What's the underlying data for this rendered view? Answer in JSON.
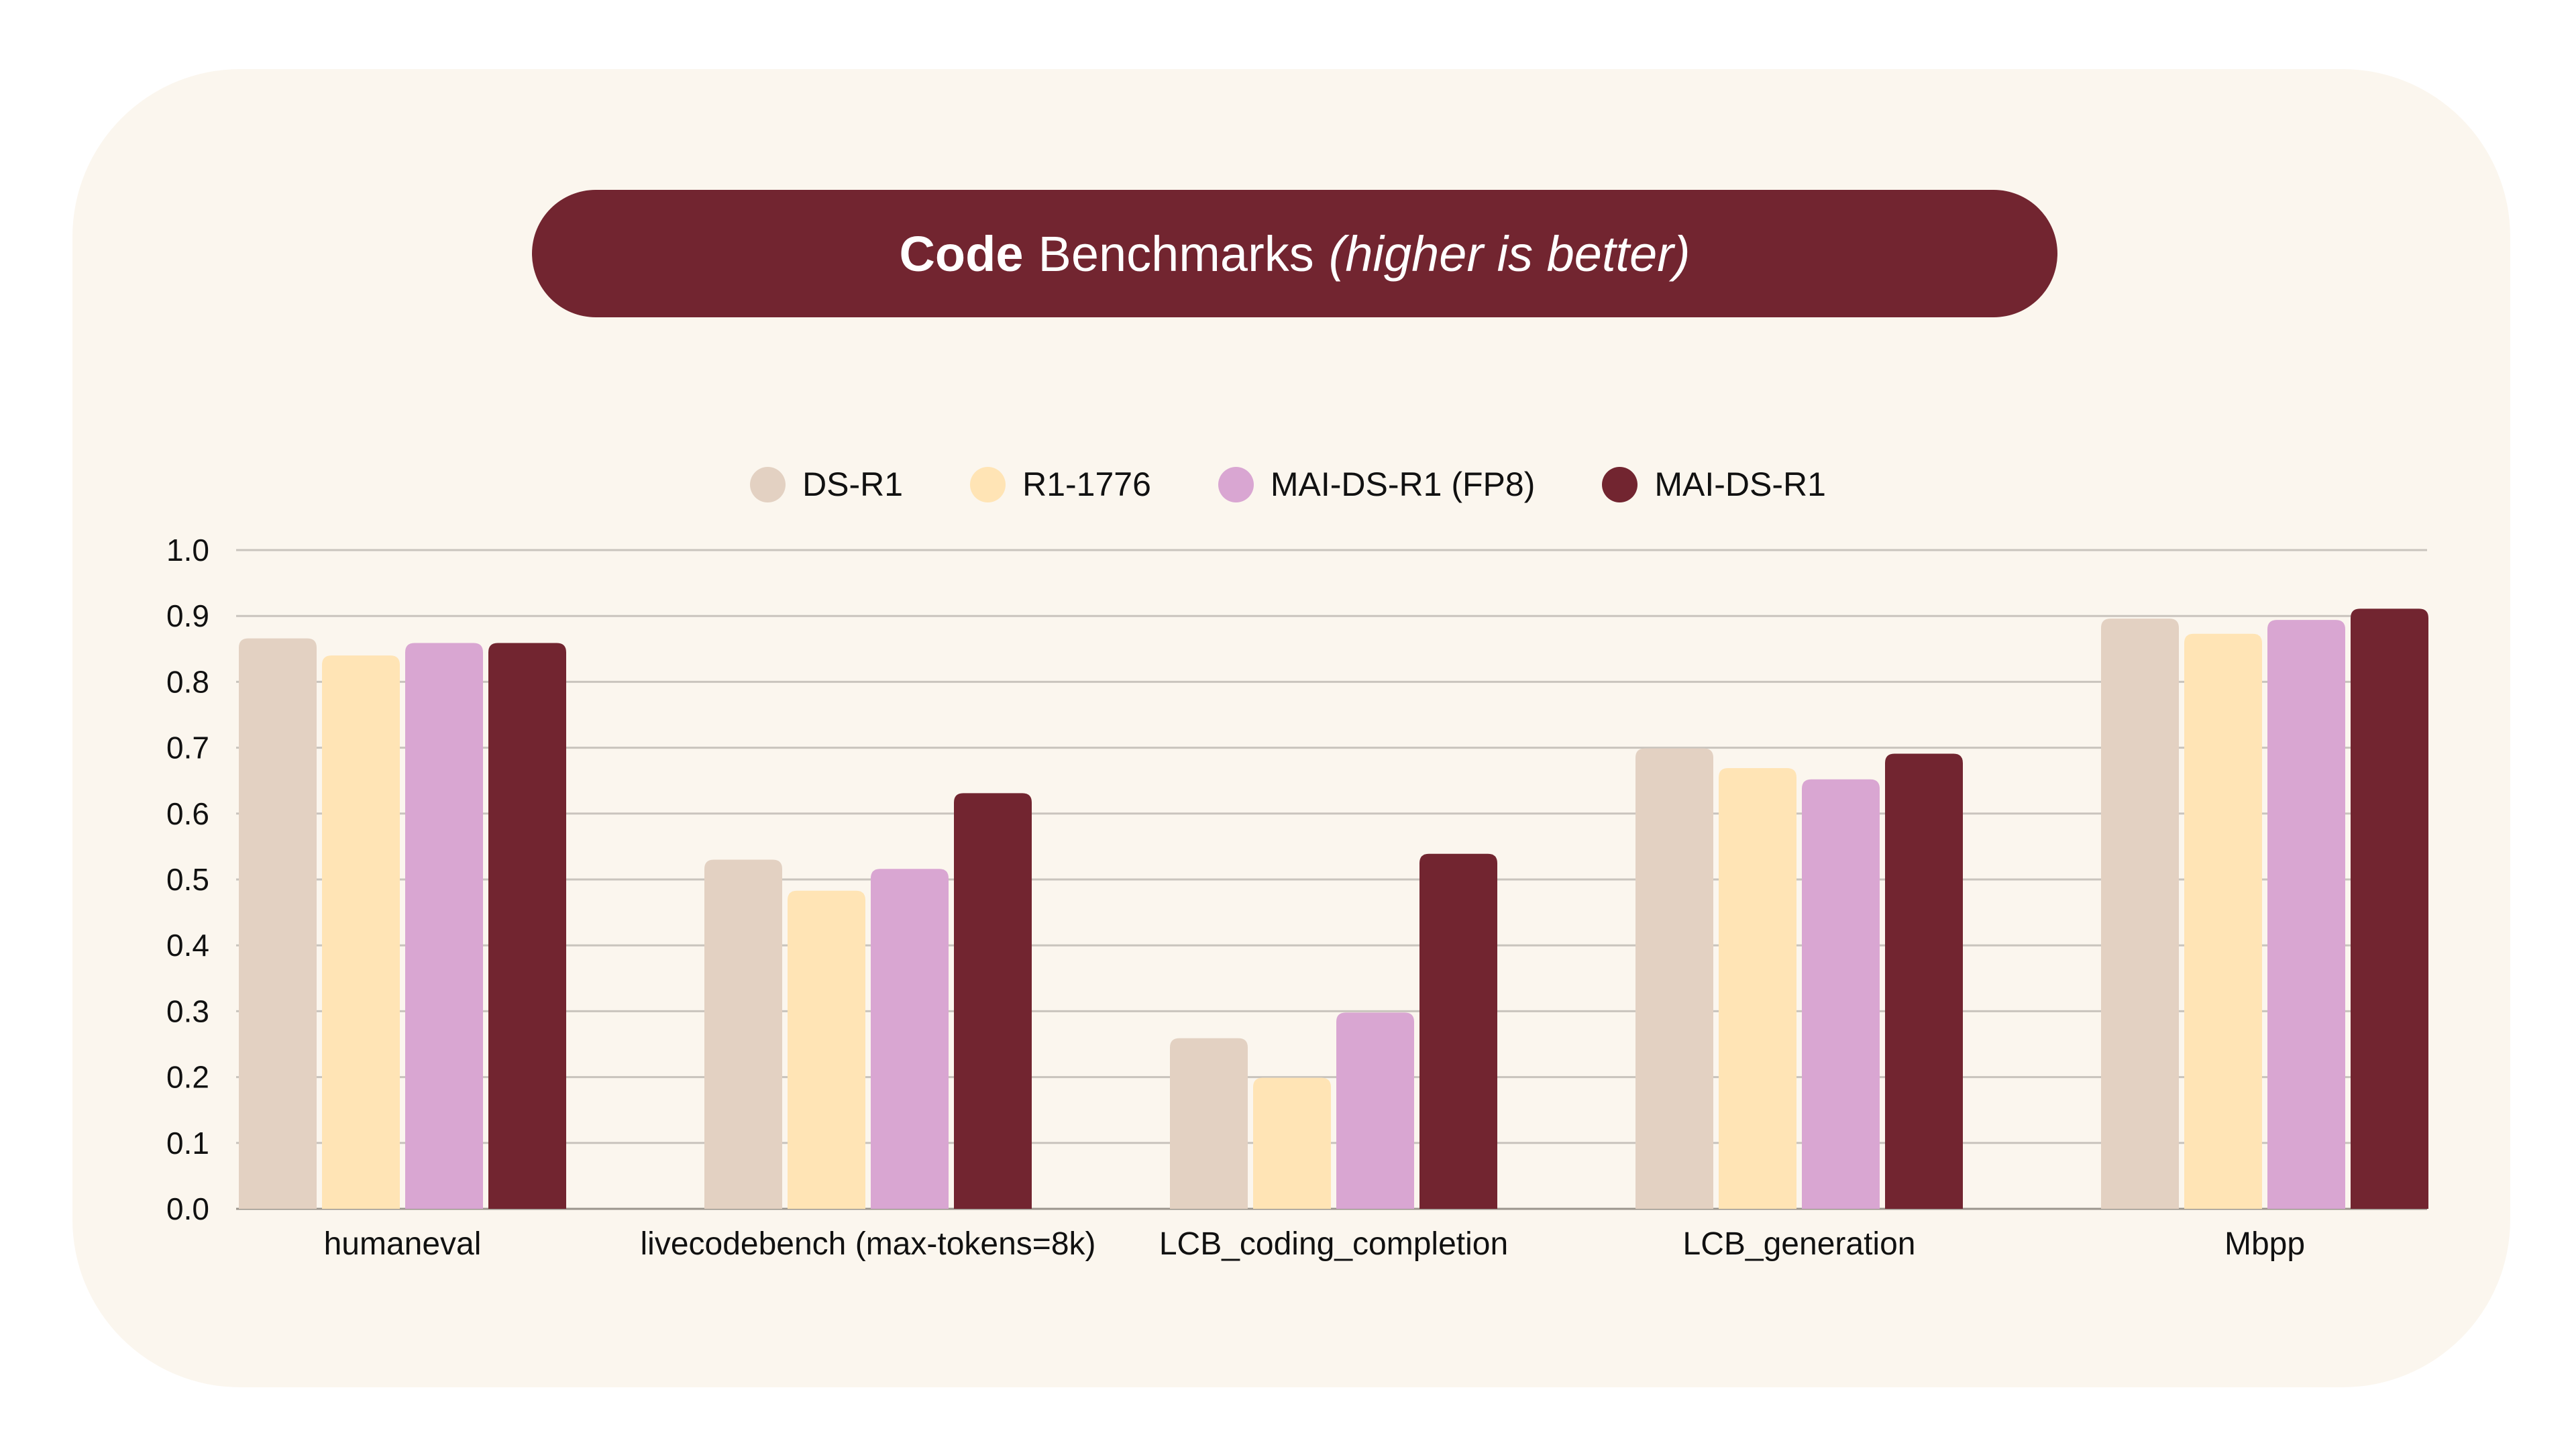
{
  "title": {
    "bold": "Code",
    "main": "Benchmarks",
    "italic": "(higher is better)"
  },
  "chart_data": {
    "type": "bar",
    "title": "Code Benchmarks (higher is better)",
    "categories": [
      "humaneval",
      "livecodebench (max-tokens=8k)",
      "LCB_coding_completion",
      "LCB_generation",
      "Mbpp"
    ],
    "series": [
      {
        "name": "DS-R1",
        "color": "#E3D1C2",
        "values": [
          0.866,
          0.53,
          0.259,
          0.699,
          0.896
        ]
      },
      {
        "name": "R1-1776",
        "color": "#FFE4B5",
        "values": [
          0.84,
          0.483,
          0.199,
          0.669,
          0.873
        ]
      },
      {
        "name": "MAI-DS-R1 (FP8)",
        "color": "#D9A6D2",
        "values": [
          0.859,
          0.516,
          0.298,
          0.652,
          0.894
        ]
      },
      {
        "name": "MAI-DS-R1",
        "color": "#722530",
        "values": [
          0.859,
          0.631,
          0.539,
          0.691,
          0.911
        ]
      }
    ],
    "yticks": [
      "0.0",
      "0.1",
      "0.2",
      "0.3",
      "0.4",
      "0.5",
      "0.6",
      "0.7",
      "0.8",
      "0.9",
      "1.0"
    ],
    "ylim": [
      0,
      1.0
    ],
    "xlabel": "",
    "ylabel": "",
    "grid": true,
    "legend": "top-center"
  }
}
